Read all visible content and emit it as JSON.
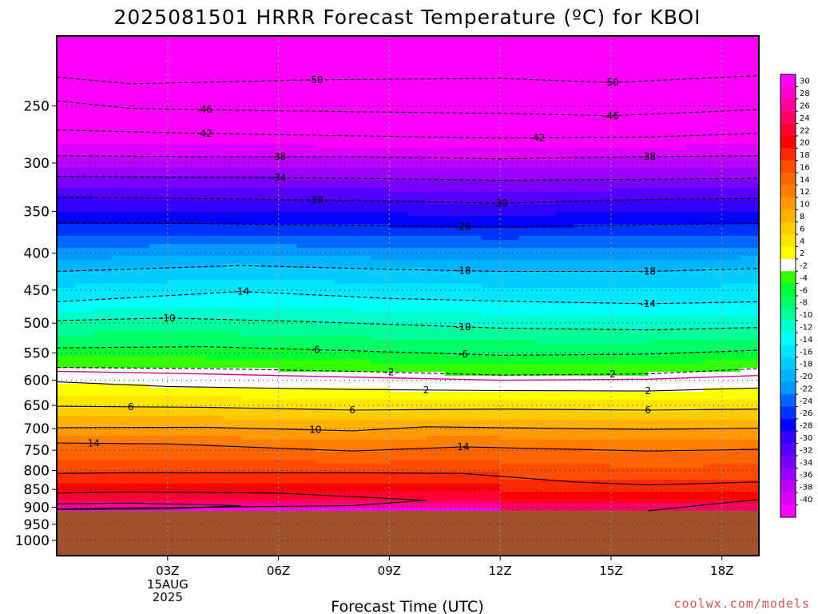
{
  "chart_data": {
    "type": "heatmap",
    "title": "2025081501 HRRR Forecast Temperature (ºC) for KBOI",
    "xlabel": "Forecast Time (UTC)",
    "ylabel": "",
    "x_tick_labels": [
      "03Z",
      "06Z",
      "09Z",
      "12Z",
      "15Z",
      "18Z"
    ],
    "x_tick_hours": [
      3,
      6,
      9,
      12,
      15,
      18
    ],
    "date_label_lines": [
      "15AUG",
      "2025"
    ],
    "xlim_hours": [
      0,
      19
    ],
    "y_tick_labels": [
      "250",
      "300",
      "350",
      "400",
      "450",
      "500",
      "550",
      "600",
      "650",
      "700",
      "750",
      "800",
      "850",
      "900",
      "950",
      "1000"
    ],
    "y_tick_values": [
      250,
      300,
      350,
      400,
      450,
      500,
      550,
      600,
      650,
      700,
      750,
      800,
      850,
      900,
      950,
      1000
    ],
    "ylim_hpa": [
      200,
      1050
    ],
    "y_scale": "log-pressure",
    "grid": true,
    "surface_pressure_hpa": 910,
    "colorbar": {
      "tick_labels": [
        "30",
        "28",
        "26",
        "24",
        "22",
        "20",
        "18",
        "16",
        "14",
        "12",
        "10",
        "8",
        "6",
        "4",
        "2",
        "-2",
        "-4",
        "-6",
        "-8",
        "-10",
        "-12",
        "-14",
        "-16",
        "-18",
        "-20",
        "-22",
        "-24",
        "-26",
        "-28",
        "-30",
        "-32",
        "-34",
        "-36",
        "-38",
        "-40"
      ],
      "colors": [
        "#ff00ff",
        "#ff00cc",
        "#ff0099",
        "#ff0066",
        "#ff0033",
        "#ff0000",
        "#ff2a00",
        "#ff4d00",
        "#ff6600",
        "#ff8000",
        "#ff9900",
        "#ffb300",
        "#ffcc00",
        "#ffe600",
        "#ffff00",
        "#ffffff",
        "#33ff00",
        "#00ff33",
        "#00ff66",
        "#00ff99",
        "#00ffcc",
        "#00ffff",
        "#00e6ff",
        "#00ccff",
        "#00b3ff",
        "#0099ff",
        "#0066ff",
        "#0033ff",
        "#0000ff",
        "#3300ff",
        "#5500ff",
        "#7700ff",
        "#9900ff",
        "#bb00ff",
        "#dd00ff",
        "#ff00ff"
      ],
      "ground_color": "#a0522d"
    },
    "isotherms": [
      {
        "value": -50,
        "label": "-50",
        "points": [
          [
            0,
            228
          ],
          [
            2,
            233
          ],
          [
            7,
            230
          ],
          [
            12,
            229
          ],
          [
            15,
            232
          ],
          [
            19,
            227
          ]
        ],
        "label_hours": [
          7,
          15
        ]
      },
      {
        "value": -46,
        "label": "-46",
        "points": [
          [
            0,
            246
          ],
          [
            2,
            252
          ],
          [
            6,
            254
          ],
          [
            12,
            256
          ],
          [
            15,
            258
          ],
          [
            19,
            253
          ]
        ],
        "label_hours": [
          4,
          15
        ]
      },
      {
        "value": -42,
        "label": "-42",
        "points": [
          [
            0,
            270
          ],
          [
            4,
            273
          ],
          [
            8,
            275
          ],
          [
            12,
            277
          ],
          [
            16,
            276
          ],
          [
            19,
            273
          ]
        ],
        "label_hours": [
          4,
          13
        ]
      },
      {
        "value": -38,
        "label": "-38",
        "points": [
          [
            0,
            293
          ],
          [
            4,
            294
          ],
          [
            8,
            294
          ],
          [
            12,
            296
          ],
          [
            16,
            294
          ],
          [
            19,
            293
          ]
        ],
        "label_hours": [
          6,
          16
        ]
      },
      {
        "value": -34,
        "label": "-34",
        "points": [
          [
            0,
            313
          ],
          [
            4,
            314
          ],
          [
            8,
            315
          ],
          [
            12,
            317
          ],
          [
            16,
            316
          ],
          [
            19,
            315
          ]
        ],
        "label_hours": [
          6
        ]
      },
      {
        "value": -30,
        "label": "-30",
        "points": [
          [
            0,
            335
          ],
          [
            4,
            336
          ],
          [
            8,
            338
          ],
          [
            12,
            341
          ],
          [
            16,
            337
          ],
          [
            19,
            336
          ]
        ],
        "label_hours": [
          7,
          12
        ]
      },
      {
        "value": -26,
        "label": "-26",
        "points": [
          [
            0,
            363
          ],
          [
            4,
            364
          ],
          [
            8,
            366
          ],
          [
            12,
            368
          ],
          [
            16,
            365
          ],
          [
            19,
            364
          ]
        ],
        "label_hours": [
          11
        ]
      },
      {
        "value": -18,
        "label": "-18",
        "points": [
          [
            0,
            424
          ],
          [
            5,
            416
          ],
          [
            9,
            421
          ],
          [
            12,
            424
          ],
          [
            16,
            424
          ],
          [
            19,
            420
          ]
        ],
        "label_hours": [
          11,
          16
        ]
      },
      {
        "value": -14,
        "label": "-14",
        "points": [
          [
            0,
            467
          ],
          [
            5,
            452
          ],
          [
            9,
            462
          ],
          [
            12,
            466
          ],
          [
            16,
            470
          ],
          [
            19,
            467
          ]
        ],
        "label_hours": [
          5,
          16
        ]
      },
      {
        "value": -10,
        "label": "-10",
        "points": [
          [
            0,
            496
          ],
          [
            3,
            492
          ],
          [
            7,
            498
          ],
          [
            12,
            508
          ],
          [
            16,
            511
          ],
          [
            19,
            507
          ]
        ],
        "label_hours": [
          3,
          11
        ]
      },
      {
        "value": -6,
        "label": "-6",
        "points": [
          [
            0,
            541
          ],
          [
            4,
            539
          ],
          [
            8,
            546
          ],
          [
            12,
            554
          ],
          [
            16,
            552
          ],
          [
            19,
            545
          ]
        ],
        "label_hours": [
          7,
          11
        ]
      },
      {
        "value": -2,
        "label": "-2",
        "points": [
          [
            0,
            576
          ],
          [
            4,
            578
          ],
          [
            8,
            583
          ],
          [
            12,
            590
          ],
          [
            16,
            588
          ],
          [
            19,
            578
          ]
        ],
        "label_hours": [
          9,
          15
        ]
      },
      {
        "value": 2,
        "label": "2",
        "points": [
          [
            0,
            603
          ],
          [
            3,
            612
          ],
          [
            8,
            618
          ],
          [
            12,
            620
          ],
          [
            16,
            621
          ],
          [
            19,
            615
          ]
        ],
        "label_hours": [
          10,
          16
        ]
      },
      {
        "value": 6,
        "label": "6",
        "points": [
          [
            0,
            652
          ],
          [
            4,
            654
          ],
          [
            8,
            660
          ],
          [
            12,
            658
          ],
          [
            16,
            660
          ],
          [
            19,
            658
          ]
        ],
        "label_hours": [
          2,
          8,
          16
        ]
      },
      {
        "value": 10,
        "label": "10",
        "points": [
          [
            0,
            698
          ],
          [
            4,
            697
          ],
          [
            8,
            705
          ],
          [
            10,
            696
          ],
          [
            16,
            702
          ],
          [
            19,
            699
          ]
        ],
        "label_hours": [
          7
        ]
      },
      {
        "value": 14,
        "label": "14",
        "points": [
          [
            0,
            733
          ],
          [
            3,
            735
          ],
          [
            8,
            752
          ],
          [
            11,
            742
          ],
          [
            16,
            752
          ],
          [
            19,
            748
          ]
        ],
        "label_hours": [
          1,
          11
        ]
      }
    ],
    "warm_contours": [
      {
        "value": 18,
        "points": [
          [
            0,
            808
          ],
          [
            2,
            806
          ],
          [
            8,
            806
          ],
          [
            11,
            808
          ],
          [
            14,
            830
          ],
          [
            16,
            838
          ],
          [
            19,
            830
          ]
        ]
      },
      {
        "value": 22,
        "points": [
          [
            0,
            860
          ],
          [
            2,
            857
          ],
          [
            6,
            860
          ],
          [
            10,
            880
          ],
          [
            8,
            895
          ],
          [
            2,
            902
          ],
          [
            0,
            905
          ]
        ]
      },
      {
        "value": 22,
        "points": [
          [
            16,
            910
          ],
          [
            18,
            888
          ],
          [
            19,
            878
          ]
        ]
      },
      {
        "value": 26,
        "points": [
          [
            0,
            890
          ],
          [
            2,
            888
          ],
          [
            5,
            895
          ],
          [
            3,
            905
          ],
          [
            0,
            906
          ]
        ]
      }
    ],
    "freezing_level": {
      "value": 0,
      "color": "#cc0099",
      "points": [
        [
          0,
          583
        ],
        [
          4,
          588
        ],
        [
          8,
          594
        ],
        [
          12,
          600
        ],
        [
          16,
          598
        ],
        [
          19,
          591
        ]
      ]
    }
  },
  "credit": "coolwx.com/models"
}
